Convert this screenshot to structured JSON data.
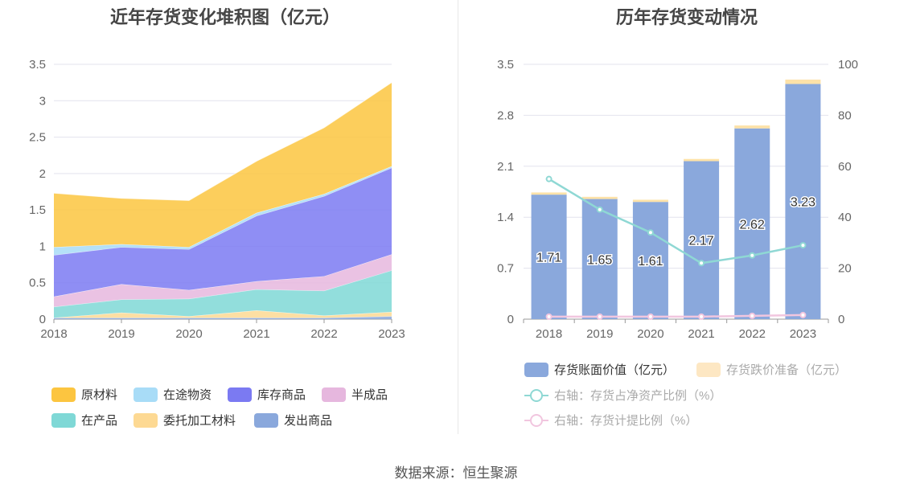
{
  "source": "数据来源：恒生聚源",
  "left": {
    "title": "近年存货变化堆积图（亿元）",
    "legend": [
      {
        "name": "原材料",
        "color": "#fcc540"
      },
      {
        "name": "在途物资",
        "color": "#a8dcf7"
      },
      {
        "name": "库存商品",
        "color": "#7b7af2"
      },
      {
        "name": "半成品",
        "color": "#e6b7de"
      },
      {
        "name": "在产品",
        "color": "#7fd8d6"
      },
      {
        "name": "委托加工材料",
        "color": "#fdd993"
      },
      {
        "name": "发出商品",
        "color": "#8aa8dc"
      }
    ]
  },
  "right": {
    "title": "历年存货变动情况",
    "legend": [
      {
        "name": "存货账面价值（亿元）",
        "color": "#8aa8dc",
        "kind": "bar"
      },
      {
        "name": "存货跌价准备（亿元）",
        "color": "#fde7c3",
        "kind": "bar",
        "muted": true
      },
      {
        "name": "右轴：存货占净资产比例（%）",
        "color": "#8fd8d4",
        "kind": "line"
      },
      {
        "name": "右轴：存货计提比例（%）",
        "color": "#f1c6df",
        "kind": "line"
      }
    ]
  },
  "chart_data": [
    {
      "type": "area",
      "title": "近年存货变化堆积图（亿元）",
      "stacked": true,
      "x": [
        "2018",
        "2019",
        "2020",
        "2021",
        "2022",
        "2023"
      ],
      "ylim": [
        0,
        3.5
      ],
      "yticks": [
        "0",
        "0.5",
        "1",
        "1.5",
        "2",
        "2.5",
        "3",
        "3.5"
      ],
      "grid": true,
      "legend_position": "bottom",
      "series": [
        {
          "name": "发出商品",
          "color": "#8aa8dc",
          "values": [
            0.02,
            0.02,
            0.02,
            0.02,
            0.02,
            0.04
          ]
        },
        {
          "name": "委托加工材料",
          "color": "#fdd993",
          "values": [
            0.0,
            0.07,
            0.02,
            0.1,
            0.03,
            0.06
          ]
        },
        {
          "name": "在产品",
          "color": "#7fd8d6",
          "values": [
            0.15,
            0.18,
            0.24,
            0.29,
            0.34,
            0.57
          ]
        },
        {
          "name": "半成品",
          "color": "#e6b7de",
          "values": [
            0.14,
            0.21,
            0.12,
            0.11,
            0.2,
            0.22
          ]
        },
        {
          "name": "库存商品",
          "color": "#7b7af2",
          "values": [
            0.57,
            0.51,
            0.56,
            0.9,
            1.1,
            1.19
          ]
        },
        {
          "name": "在途物资",
          "color": "#a8dcf7",
          "values": [
            0.11,
            0.04,
            0.03,
            0.04,
            0.03,
            0.02
          ]
        },
        {
          "name": "原材料",
          "color": "#fcc540",
          "values": [
            0.74,
            0.63,
            0.64,
            0.71,
            0.91,
            1.15
          ]
        }
      ]
    },
    {
      "type": "bar",
      "title": "历年存货变动情况",
      "stacked": true,
      "x": [
        "2018",
        "2019",
        "2020",
        "2021",
        "2022",
        "2023"
      ],
      "ylim": [
        0,
        3.5
      ],
      "yticks": [
        "0",
        "0.7",
        "1.4",
        "2.1",
        "2.8",
        "3.5"
      ],
      "y2lim": [
        0,
        100
      ],
      "y2ticks": [
        "0",
        "20",
        "40",
        "60",
        "80",
        "100"
      ],
      "grid": true,
      "legend_position": "bottom",
      "series": [
        {
          "name": "存货账面价值（亿元）",
          "type": "bar",
          "color": "#8aa8dc",
          "values": [
            1.71,
            1.65,
            1.61,
            2.17,
            2.62,
            3.23
          ],
          "labels": [
            "1.71",
            "1.65",
            "1.61",
            "2.17",
            "2.62",
            "3.23"
          ]
        },
        {
          "name": "存货跌价准备（亿元）",
          "type": "bar",
          "color": "#fde2a8",
          "values": [
            0.03,
            0.03,
            0.03,
            0.03,
            0.04,
            0.06
          ]
        },
        {
          "name": "右轴：存货占净资产比例（%）",
          "type": "line",
          "axis": "right",
          "color": "#8fd8d4",
          "values": [
            55,
            43,
            34,
            22,
            25,
            29
          ]
        },
        {
          "name": "右轴：存货计提比例（%）",
          "type": "line",
          "axis": "right",
          "color": "#f1c6df",
          "values": [
            1,
            1,
            1,
            1,
            1.3,
            1.6
          ]
        }
      ]
    }
  ]
}
